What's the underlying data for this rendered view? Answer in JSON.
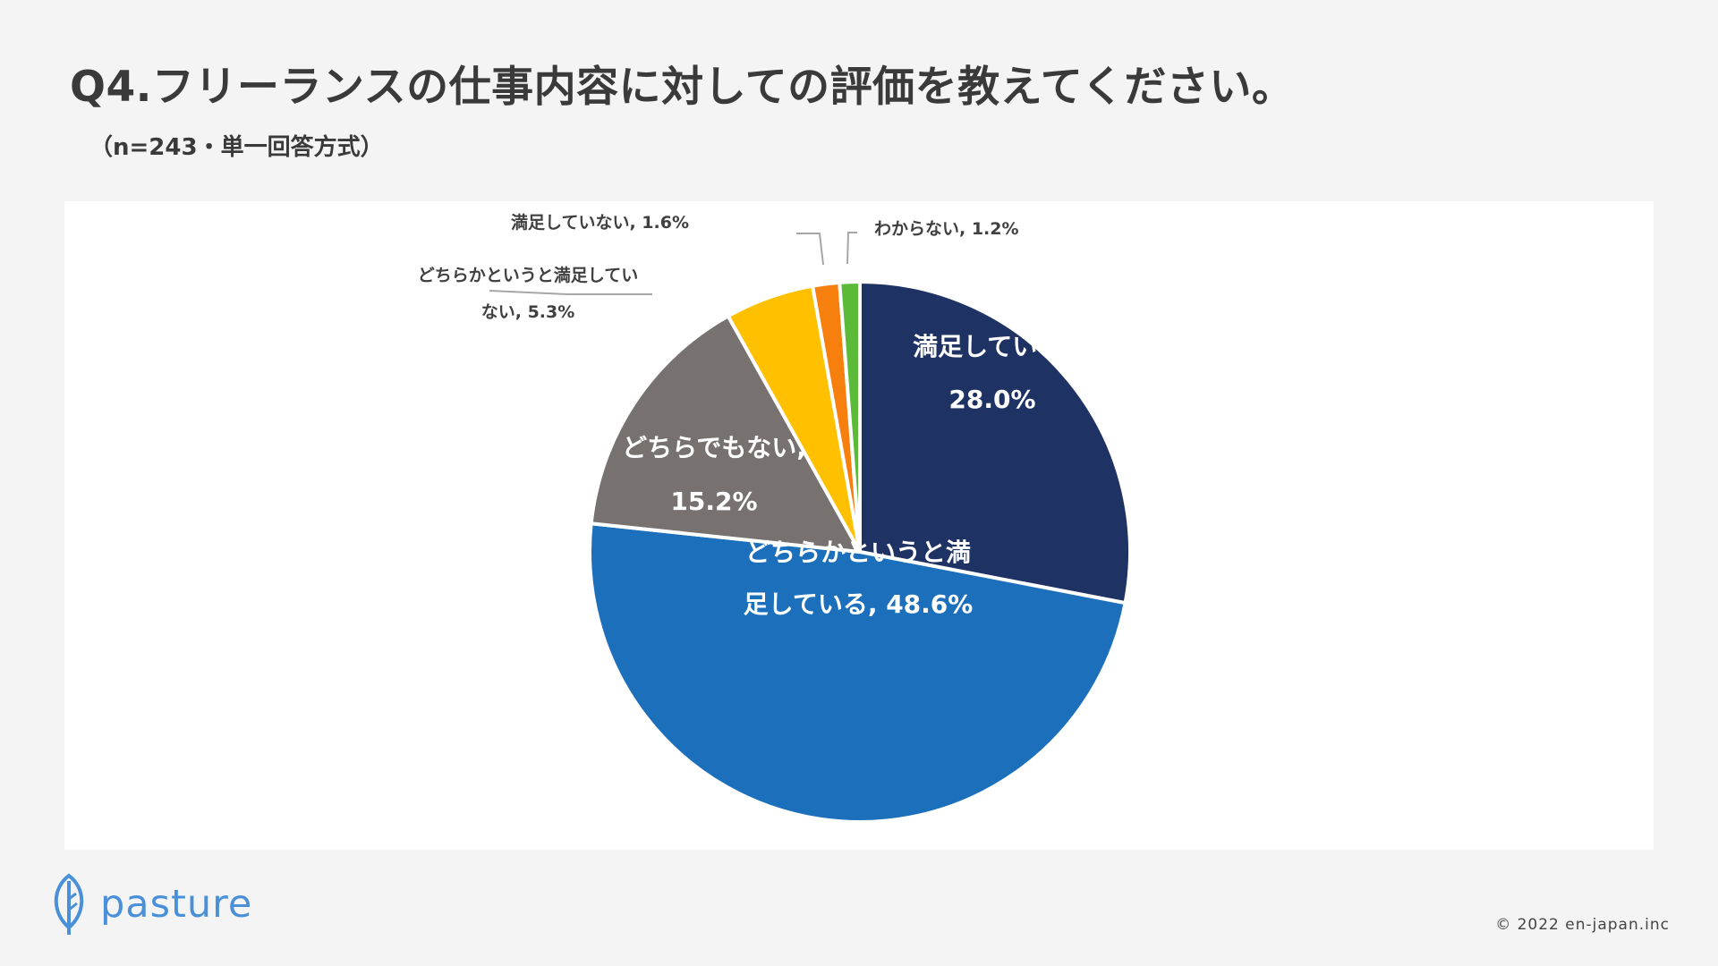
{
  "header": {
    "title": "Q4.フリーランスの仕事内容に対しての評価を教えてください。",
    "subtitle": "（n=243・単一回答方式）"
  },
  "chart_data": {
    "type": "pie",
    "start": "top",
    "direction": "clockwise",
    "slices": [
      {
        "label": "満足している",
        "value": 28.0,
        "display": "28.0%",
        "color": "#1f3264"
      },
      {
        "label": "どちらかというと満足している",
        "value": 48.6,
        "display": "48.6%",
        "color": "#1b6fbb"
      },
      {
        "label": "どちらでもない",
        "value": 15.2,
        "display": "15.2%",
        "color": "#777170"
      },
      {
        "label": "どちらかというと満足していない",
        "value": 5.3,
        "display": "5.3%",
        "color": "#ffc000"
      },
      {
        "label": "満足していない",
        "value": 1.6,
        "display": "1.6%",
        "color": "#f77f0e"
      },
      {
        "label": "わからない",
        "value": 1.2,
        "display": "1.2%",
        "color": "#5bbb38"
      }
    ],
    "data_labels": [
      [
        "満足している,",
        "28.0%"
      ],
      [
        "どちらかというと満",
        "足している, 48.6%"
      ],
      [
        "どちらでもない,",
        "15.2%"
      ],
      [
        "どちらかというと満足してい",
        "ない, 5.3%"
      ],
      [
        "満足していない, 1.6%"
      ],
      [
        "わからない, 1.2%"
      ]
    ]
  },
  "footer": {
    "logo_text": "pasture",
    "logo_icon": "leaf-icon",
    "copyright": "© 2022 en-japan.inc",
    "brand_color": "#4a90d9"
  }
}
